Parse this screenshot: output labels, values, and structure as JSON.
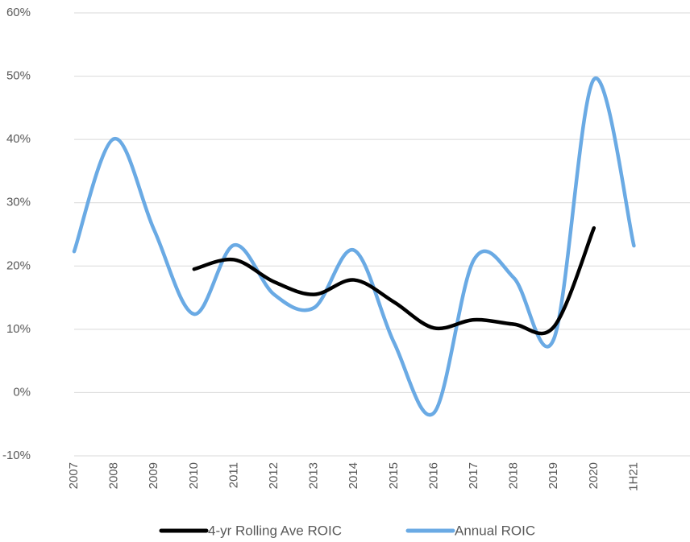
{
  "chart_data": {
    "type": "line",
    "categories": [
      "2007",
      "2008",
      "2009",
      "2010",
      "2011",
      "2012",
      "2013",
      "2014",
      "2015",
      "2016",
      "2017",
      "2018",
      "2019",
      "2020",
      "1H21"
    ],
    "series": [
      {
        "name": "4-yr Rolling Ave ROIC",
        "color": "#000000",
        "values": [
          null,
          null,
          null,
          19.5,
          21,
          17.5,
          15.5,
          17.8,
          14.3,
          10.2,
          11.5,
          10.8,
          10.4,
          26,
          null
        ]
      },
      {
        "name": "Annual ROIC",
        "color": "#6aaae4",
        "values": [
          22.3,
          40.1,
          25.7,
          12.4,
          23.3,
          15.5,
          13.4,
          22.5,
          7.9,
          -3.2,
          21,
          18.1,
          8.5,
          49.5,
          23.2
        ]
      }
    ],
    "ylim": [
      -10,
      60
    ],
    "yticks": [
      {
        "value": -10,
        "label": "-10%"
      },
      {
        "value": 0,
        "label": "0%"
      },
      {
        "value": 10,
        "label": "10%"
      },
      {
        "value": 20,
        "label": "20%"
      },
      {
        "value": 30,
        "label": "30%"
      },
      {
        "value": 40,
        "label": "40%"
      },
      {
        "value": 50,
        "label": "50%"
      },
      {
        "value": 60,
        "label": "60%"
      }
    ],
    "grid": true,
    "legend": "bottom"
  }
}
